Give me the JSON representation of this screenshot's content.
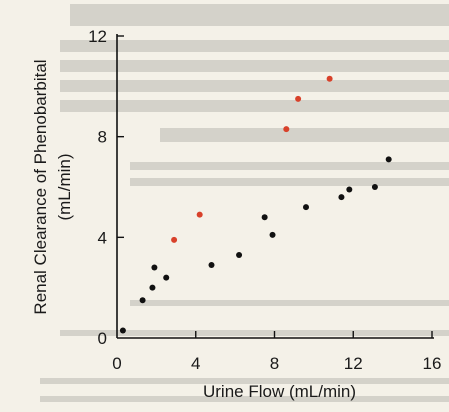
{
  "chart_data": {
    "type": "scatter",
    "xlabel": "Urine Flow (mL/min)",
    "ylabel": "Renal Clearance of Phenobarbital (mL/min)",
    "ylabel_lines": [
      "Renal Clearance of Phenobarbital",
      "(mL/min)"
    ],
    "xlim": [
      0,
      16
    ],
    "ylim": [
      0,
      12
    ],
    "x_ticks": [
      0,
      4,
      8,
      12,
      16
    ],
    "y_ticks": [
      0,
      4,
      8,
      12
    ],
    "grid": false,
    "colors": {
      "black_series": "#111111",
      "red_series": "#d8412a",
      "axis": "#111111"
    },
    "series": [
      {
        "marker_color": "black",
        "points": [
          [
            0.3,
            0.3
          ],
          [
            1.3,
            1.5
          ],
          [
            1.8,
            2.0
          ],
          [
            1.9,
            2.8
          ],
          [
            2.5,
            2.4
          ],
          [
            4.8,
            2.9
          ],
          [
            6.2,
            3.3
          ],
          [
            7.5,
            4.8
          ],
          [
            7.9,
            4.1
          ],
          [
            9.6,
            5.2
          ],
          [
            11.4,
            5.6
          ],
          [
            11.8,
            5.9
          ],
          [
            13.1,
            6.0
          ],
          [
            13.8,
            7.1
          ]
        ]
      },
      {
        "marker_color": "red",
        "points": [
          [
            2.9,
            3.9
          ],
          [
            4.2,
            4.9
          ],
          [
            8.6,
            8.3
          ],
          [
            9.2,
            9.5
          ],
          [
            10.8,
            10.3
          ]
        ]
      }
    ]
  }
}
